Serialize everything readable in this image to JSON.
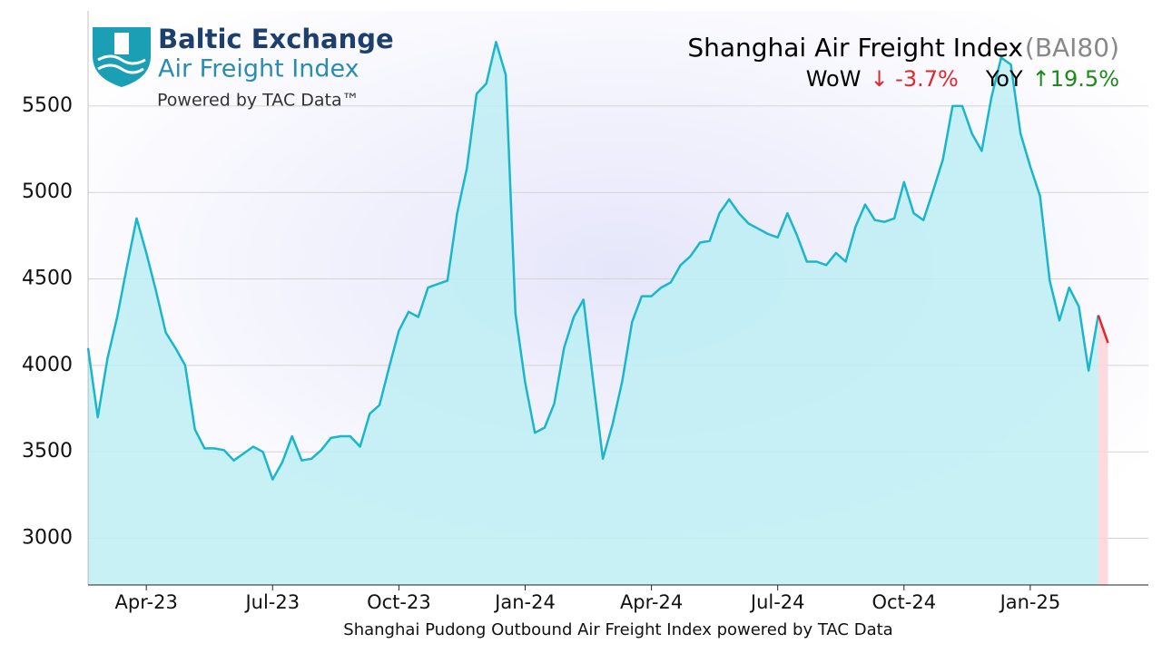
{
  "logo": {
    "name": "Baltic Exchange",
    "product": "Air Freight Index",
    "tagline": "Powered by TAC Data™"
  },
  "chart_data": {
    "type": "line",
    "title": "Shanghai Air Freight Index",
    "subtitle": "(BAI80)",
    "wow_label": "WoW",
    "wow_value": "↓ -3.7%",
    "yoy_label": "YoY",
    "yoy_value": "↑19.5%",
    "x_label": "Shanghai Pudong Outbound Air Freight Index powered by TAC Data",
    "categories": [
      null,
      null,
      null,
      null,
      null,
      null,
      "Apr-23",
      null,
      null,
      null,
      null,
      null,
      null,
      null,
      null,
      null,
      null,
      null,
      null,
      "Jul-23",
      null,
      null,
      null,
      null,
      null,
      null,
      null,
      null,
      null,
      null,
      null,
      null,
      "Oct-23",
      null,
      null,
      null,
      null,
      null,
      null,
      null,
      null,
      null,
      null,
      null,
      null,
      "Jan-24",
      null,
      null,
      null,
      null,
      null,
      null,
      null,
      null,
      null,
      null,
      null,
      null,
      "Apr-24",
      null,
      null,
      null,
      null,
      null,
      null,
      null,
      null,
      null,
      null,
      null,
      null,
      "Jul-24",
      null,
      null,
      null,
      null,
      null,
      null,
      null,
      null,
      null,
      null,
      null,
      null,
      "Oct-24",
      null,
      null,
      null,
      null,
      null,
      null,
      null,
      null,
      null,
      null,
      null,
      null,
      "Jan-25",
      null,
      null,
      null,
      null,
      null,
      null,
      null,
      null
    ],
    "values": [
      4100,
      3700,
      4040,
      4280,
      4570,
      4850,
      4650,
      4430,
      4190,
      4100,
      4000,
      3630,
      3520,
      3520,
      3510,
      3450,
      3490,
      3530,
      3500,
      3340,
      3440,
      3590,
      3450,
      3460,
      3510,
      3580,
      3590,
      3590,
      3530,
      3720,
      3770,
      3990,
      4200,
      4310,
      4280,
      4450,
      4470,
      4490,
      4880,
      5140,
      5570,
      5630,
      5870,
      5680,
      4300,
      3900,
      3610,
      3640,
      3780,
      4100,
      4280,
      4380,
      3910,
      3460,
      3660,
      3910,
      4250,
      4400,
      4400,
      4450,
      4480,
      4580,
      4630,
      4710,
      4720,
      4880,
      4960,
      4880,
      4820,
      4790,
      4760,
      4740,
      4880,
      4750,
      4600,
      4600,
      4580,
      4650,
      4600,
      4800,
      4930,
      4840,
      4830,
      4850,
      5060,
      4880,
      4840,
      5010,
      5190,
      5500,
      5500,
      5340,
      5240,
      5550,
      5780,
      5740,
      5340,
      5150,
      4980,
      4490,
      4260,
      4450,
      4340,
      3970,
      4290,
      4130
    ],
    "color": "#19b6cc",
    "fill_color": "#bdeef3",
    "latest_color": "#e3262b",
    "latest_fill_color": "#fdd3d8",
    "ylim": [
      2730,
      6050
    ],
    "yticks": [
      3000,
      3500,
      4000,
      4500,
      5000,
      5500
    ],
    "grid": true
  }
}
